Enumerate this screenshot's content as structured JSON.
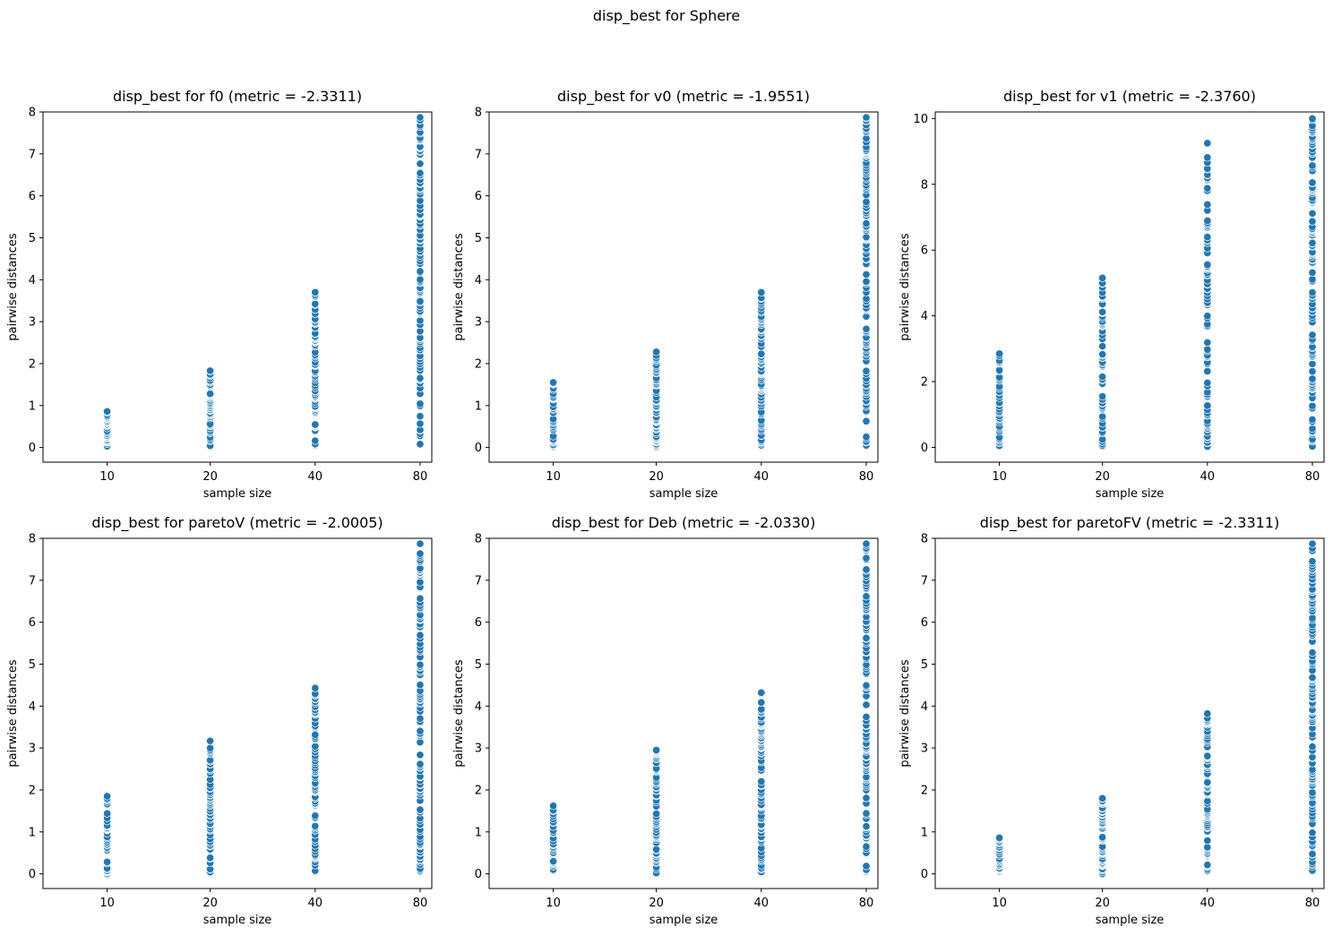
{
  "figure": {
    "title": "disp_best for Sphere"
  },
  "chart_data": [
    {
      "type": "scatter",
      "title": "disp_best for f0 (metric = -2.3311)",
      "xlabel": "sample size",
      "ylabel": "pairwise distances",
      "categories": [
        "10",
        "20",
        "40",
        "80"
      ],
      "ylim": [
        -0.35,
        8.0
      ],
      "yticks": [
        0,
        1,
        2,
        3,
        4,
        5,
        6,
        7,
        8
      ],
      "range_per_category": [
        [
          0.03,
          0.86
        ],
        [
          0.0,
          1.83
        ],
        [
          0.05,
          3.7
        ],
        [
          0.08,
          7.87
        ]
      ]
    },
    {
      "type": "scatter",
      "title": "disp_best for v0 (metric = -1.9551)",
      "xlabel": "sample size",
      "ylabel": "pairwise distances",
      "categories": [
        "10",
        "20",
        "40",
        "80"
      ],
      "ylim": [
        -0.35,
        8.0
      ],
      "yticks": [
        0,
        1,
        2,
        3,
        4,
        5,
        6,
        7,
        8
      ],
      "range_per_category": [
        [
          0.02,
          1.55
        ],
        [
          0.02,
          2.28
        ],
        [
          0.03,
          3.7
        ],
        [
          0.05,
          7.87
        ]
      ]
    },
    {
      "type": "scatter",
      "title": "disp_best for v1 (metric = -2.3760)",
      "xlabel": "sample size",
      "ylabel": "pairwise distances",
      "categories": [
        "10",
        "20",
        "40",
        "80"
      ],
      "ylim": [
        -0.45,
        10.2
      ],
      "yticks": [
        0,
        2,
        4,
        6,
        8,
        10
      ],
      "range_per_category": [
        [
          0.05,
          2.85
        ],
        [
          0.04,
          5.15
        ],
        [
          0.02,
          9.25
        ],
        [
          0.03,
          10.0
        ]
      ]
    },
    {
      "type": "scatter",
      "title": "disp_best for paretoV (metric = -2.0005)",
      "xlabel": "sample size",
      "ylabel": "pairwise distances",
      "categories": [
        "10",
        "20",
        "40",
        "80"
      ],
      "ylim": [
        -0.35,
        8.0
      ],
      "yticks": [
        0,
        1,
        2,
        3,
        4,
        5,
        6,
        7,
        8
      ],
      "range_per_category": [
        [
          0.0,
          1.85
        ],
        [
          0.02,
          3.17
        ],
        [
          0.06,
          4.43
        ],
        [
          0.06,
          7.87
        ]
      ]
    },
    {
      "type": "scatter",
      "title": "disp_best for Deb (metric = -2.0330)",
      "xlabel": "sample size",
      "ylabel": "pairwise distances",
      "categories": [
        "10",
        "20",
        "40",
        "80"
      ],
      "ylim": [
        -0.35,
        8.0
      ],
      "yticks": [
        0,
        1,
        2,
        3,
        4,
        5,
        6,
        7,
        8
      ],
      "range_per_category": [
        [
          0.05,
          1.62
        ],
        [
          0.02,
          2.95
        ],
        [
          0.04,
          4.32
        ],
        [
          0.05,
          7.87
        ]
      ]
    },
    {
      "type": "scatter",
      "title": "disp_best for paretoFV (metric = -2.3311)",
      "xlabel": "sample size",
      "ylabel": "pairwise distances",
      "categories": [
        "10",
        "20",
        "40",
        "80"
      ],
      "ylim": [
        -0.35,
        8.0
      ],
      "yticks": [
        0,
        1,
        2,
        3,
        4,
        5,
        6,
        7,
        8
      ],
      "range_per_category": [
        [
          0.03,
          0.86
        ],
        [
          0.0,
          1.8
        ],
        [
          0.05,
          3.82
        ],
        [
          0.08,
          7.87
        ]
      ]
    }
  ],
  "colors": {
    "points": "#1f77b4"
  }
}
